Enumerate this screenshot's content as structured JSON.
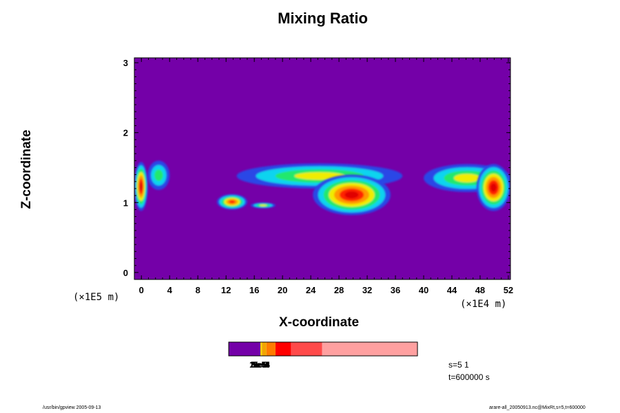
{
  "chart_data": {
    "type": "heatmap",
    "title": "Mixing Ratio",
    "xlabel": "X-coordinate",
    "ylabel": "Z-coordinate",
    "x_unit_label": "(×1E4 m)",
    "y_unit_label": "(×1E5 m)",
    "x_ticks": [
      "0",
      "4",
      "8",
      "12",
      "16",
      "20",
      "24",
      "28",
      "32",
      "36",
      "40",
      "44",
      "48",
      "52"
    ],
    "y_ticks": [
      "0",
      "1",
      "2",
      "3"
    ],
    "xlim": [
      -1,
      52.3
    ],
    "ylim": [
      -0.1,
      3.07
    ],
    "background_color": "#7400a8",
    "colormap": [
      "#2a46e6",
      "#0fd4ef",
      "#22e86d",
      "#f0ec06",
      "#ff9a00",
      "#ff2200",
      "#e00000"
    ],
    "features": [
      {
        "x": [
          -1,
          0.9
        ],
        "z": [
          0.88,
          1.58
        ],
        "peak": 6
      },
      {
        "x": [
          0.9,
          4.0
        ],
        "z": [
          1.18,
          1.6
        ],
        "peak": 2
      },
      {
        "x": [
          10.7,
          15.0
        ],
        "z": [
          0.9,
          1.12
        ],
        "peak": 5
      },
      {
        "x": [
          15.5,
          19.0
        ],
        "z": [
          0.92,
          1.0
        ],
        "peak": 3
      },
      {
        "x": [
          13.5,
          37.0
        ],
        "z": [
          1.2,
          1.56
        ],
        "peak": 3
      },
      {
        "x": [
          24.3,
          35.3
        ],
        "z": [
          0.82,
          1.4
        ],
        "peak": 6
      },
      {
        "x": [
          40.0,
          52.3
        ],
        "z": [
          1.15,
          1.55
        ],
        "peak": 3
      },
      {
        "x": [
          47.5,
          52.3
        ],
        "z": [
          0.88,
          1.55
        ],
        "peak": 6
      }
    ]
  },
  "colorbar": {
    "segments": [
      {
        "color": "#7400a8",
        "from": 0,
        "to": 0.168
      },
      {
        "color": "#ffd200",
        "from": 0.168,
        "to": 0.176
      },
      {
        "color": "#f2a500",
        "from": 0.176,
        "to": 0.2
      },
      {
        "color": "#ff7b00",
        "from": 0.2,
        "to": 0.248
      },
      {
        "color": "#ff0000",
        "from": 0.248,
        "to": 0.33
      },
      {
        "color": "#ff4a4a",
        "from": 0.33,
        "to": 0.495
      },
      {
        "color": "#ffa0a0",
        "from": 0.495,
        "to": 1.0
      }
    ],
    "labels": [
      "1e-5",
      "2e-5",
      "3e-5",
      "5e-5",
      "1e-4",
      "2e-4",
      "5e-4"
    ]
  },
  "info": {
    "s_line": "s=5 1",
    "t_line": "t=600000 s"
  },
  "footer": {
    "left": "/usr/bin/gpview 2005-09-13",
    "right": "arare-all_20050913.nc@MixRt,s=5,t=600000"
  }
}
